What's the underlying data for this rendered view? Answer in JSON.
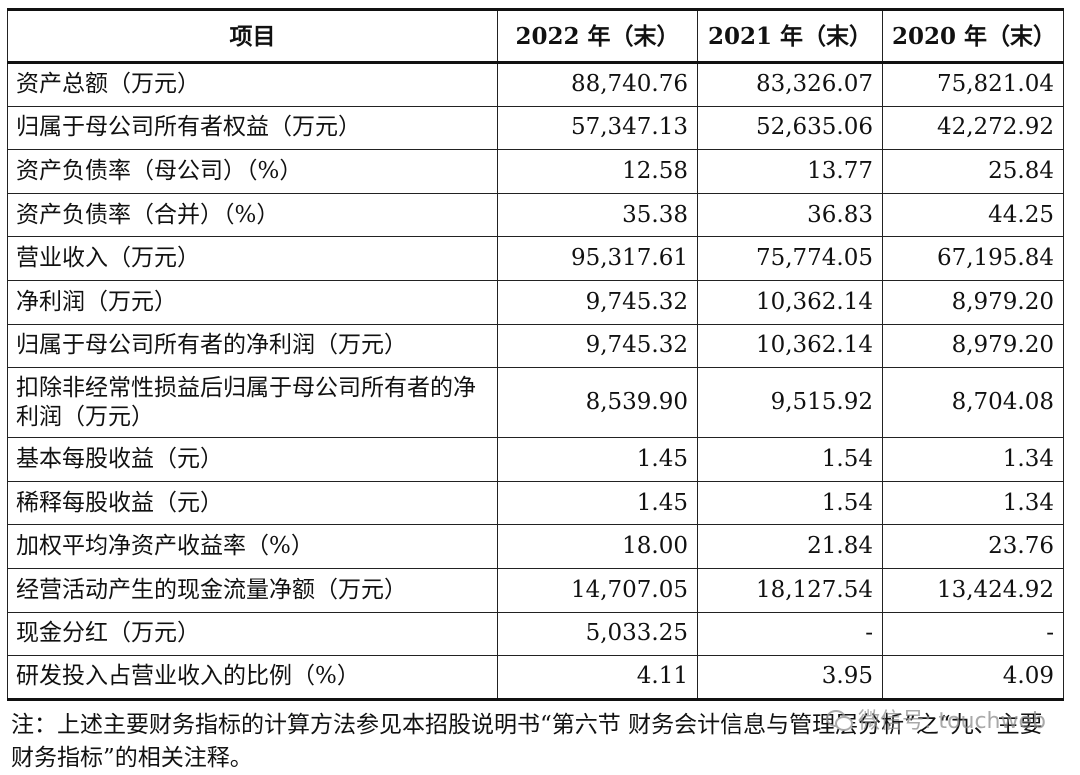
{
  "table": {
    "headers": [
      "项目",
      "2022 年（末）",
      "2021 年（末）",
      "2020 年（末）"
    ],
    "rows": [
      {
        "label": "资产总额（万元）",
        "v2022": "88,740.76",
        "v2021": "83,326.07",
        "v2020": "75,821.04"
      },
      {
        "label": "归属于母公司所有者权益（万元）",
        "v2022": "57,347.13",
        "v2021": "52,635.06",
        "v2020": "42,272.92"
      },
      {
        "label": "资产负债率（母公司）（%）",
        "v2022": "12.58",
        "v2021": "13.77",
        "v2020": "25.84"
      },
      {
        "label": "资产负债率（合并）（%）",
        "v2022": "35.38",
        "v2021": "36.83",
        "v2020": "44.25"
      },
      {
        "label": "营业收入（万元）",
        "v2022": "95,317.61",
        "v2021": "75,774.05",
        "v2020": "67,195.84"
      },
      {
        "label": "净利润（万元）",
        "v2022": "9,745.32",
        "v2021": "10,362.14",
        "v2020": "8,979.20"
      },
      {
        "label": "归属于母公司所有者的净利润（万元）",
        "v2022": "9,745.32",
        "v2021": "10,362.14",
        "v2020": "8,979.20"
      },
      {
        "label": "扣除非经常性损益后归属于母公司所有者的净利润（万元）",
        "v2022": "8,539.90",
        "v2021": "9,515.92",
        "v2020": "8,704.08"
      },
      {
        "label": "基本每股收益（元）",
        "v2022": "1.45",
        "v2021": "1.54",
        "v2020": "1.34"
      },
      {
        "label": "稀释每股收益（元）",
        "v2022": "1.45",
        "v2021": "1.54",
        "v2020": "1.34"
      },
      {
        "label": "加权平均净资产收益率（%）",
        "v2022": "18.00",
        "v2021": "21.84",
        "v2020": "23.76"
      },
      {
        "label": "经营活动产生的现金流量净额（万元）",
        "v2022": "14,707.05",
        "v2021": "18,127.54",
        "v2020": "13,424.92"
      },
      {
        "label": "现金分红（万元）",
        "v2022": "5,033.25",
        "v2021": "-",
        "v2020": "-"
      },
      {
        "label": "研发投入占营业收入的比例（%）",
        "v2022": "4.11",
        "v2021": "3.95",
        "v2020": "4.09"
      }
    ]
  },
  "note": "注：上述主要财务指标的计算方法参见本招股说明书“第六节 财务会计信息与管理层分析”之“九、主要财务指标”的相关注释。",
  "watermark": {
    "text": "微信号: touchweb",
    "icon": "wechat-icon"
  }
}
